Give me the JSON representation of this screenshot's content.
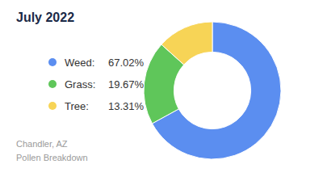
{
  "chart_data": {
    "type": "pie",
    "title": "July 2022",
    "categories": [
      "Weed:",
      "Grass:",
      "Tree:"
    ],
    "values": [
      67.02,
      19.67,
      13.31
    ],
    "value_labels": [
      "67.02%",
      "19.67%",
      "13.31%"
    ],
    "colors": [
      "#5b8ef0",
      "#5fc65a",
      "#f7d456"
    ],
    "annotations": [
      "Chandler, AZ",
      "Pollen Breakdown"
    ]
  }
}
